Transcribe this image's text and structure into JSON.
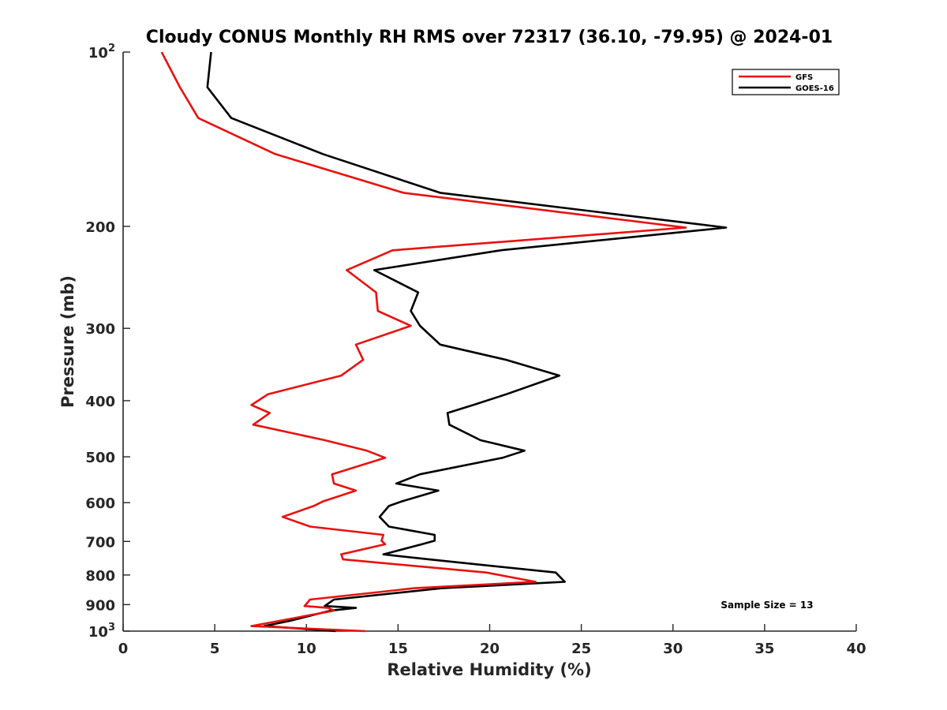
{
  "chart_data": {
    "type": "line",
    "title": "Cloudy CONUS Monthly RH RMS over 72317 (36.10, -79.95) @ 2024-01",
    "xlabel": "Relative Humidity (%)",
    "ylabel": "Pressure (mb)",
    "xlim": [
      0,
      40
    ],
    "ylim": [
      100,
      1000
    ],
    "yscale": "log",
    "y_reversed": true,
    "x_ticks": [
      0,
      5,
      10,
      15,
      20,
      25,
      30,
      35,
      40
    ],
    "x_tick_labels": [
      "0",
      "5",
      "10",
      "15",
      "20",
      "25",
      "30",
      "35",
      "40"
    ],
    "y_ticks": [
      100,
      200,
      300,
      400,
      500,
      600,
      700,
      800,
      900,
      1000
    ],
    "y_tick_labels": [
      {
        "base": "10",
        "exp": "2"
      },
      {
        "base": "200",
        "exp": ""
      },
      {
        "base": "300",
        "exp": ""
      },
      {
        "base": "400",
        "exp": ""
      },
      {
        "base": "500",
        "exp": ""
      },
      {
        "base": "600",
        "exp": ""
      },
      {
        "base": "700",
        "exp": ""
      },
      {
        "base": "800",
        "exp": ""
      },
      {
        "base": "900",
        "exp": ""
      },
      {
        "base": "10",
        "exp": "3"
      }
    ],
    "grid": false,
    "legend_position": "top-right",
    "annotation": "Sample Size = 13",
    "series": [
      {
        "name": "GFS",
        "color": "#e8120f",
        "points": [
          [
            2.1,
            100
          ],
          [
            3.1,
            115
          ],
          [
            4.1,
            130
          ],
          [
            8.3,
            150
          ],
          [
            15.3,
            175
          ],
          [
            30.7,
            201
          ],
          [
            14.7,
            220
          ],
          [
            12.2,
            238
          ],
          [
            13.8,
            260
          ],
          [
            13.9,
            280
          ],
          [
            15.7,
            297
          ],
          [
            12.7,
            320
          ],
          [
            13.1,
            340
          ],
          [
            11.9,
            362
          ],
          [
            7.9,
            390
          ],
          [
            7.0,
            407
          ],
          [
            8.0,
            420
          ],
          [
            7.1,
            440
          ],
          [
            11.0,
            468
          ],
          [
            13.3,
            488
          ],
          [
            14.3,
            502
          ],
          [
            11.4,
            536
          ],
          [
            11.5,
            556
          ],
          [
            12.7,
            572
          ],
          [
            10.9,
            597
          ],
          [
            10.4,
            608
          ],
          [
            8.7,
            635
          ],
          [
            10.2,
            660
          ],
          [
            14.2,
            682
          ],
          [
            14.1,
            698
          ],
          [
            14.3,
            708
          ],
          [
            11.9,
            737
          ],
          [
            12.0,
            752
          ],
          [
            19.8,
            792
          ],
          [
            22.5,
            822
          ],
          [
            15.9,
            843
          ],
          [
            10.2,
            882
          ],
          [
            9.9,
            905
          ],
          [
            11.2,
            912
          ],
          [
            11.5,
            922
          ],
          [
            7.0,
            980
          ],
          [
            13.2,
            1000
          ]
        ]
      },
      {
        "name": "GOES-16",
        "color": "#000000",
        "points": [
          [
            4.8,
            100
          ],
          [
            4.6,
            115
          ],
          [
            5.9,
            130
          ],
          [
            10.9,
            150
          ],
          [
            17.3,
            175
          ],
          [
            32.9,
            201
          ],
          [
            20.6,
            220
          ],
          [
            13.7,
            238
          ],
          [
            16.1,
            260
          ],
          [
            15.7,
            280
          ],
          [
            16.2,
            297
          ],
          [
            17.3,
            320
          ],
          [
            20.9,
            340
          ],
          [
            23.8,
            362
          ],
          [
            20.9,
            390
          ],
          [
            19.1,
            407
          ],
          [
            17.7,
            420
          ],
          [
            17.8,
            440
          ],
          [
            19.5,
            468
          ],
          [
            21.9,
            488
          ],
          [
            20.7,
            502
          ],
          [
            16.2,
            536
          ],
          [
            14.9,
            556
          ],
          [
            17.2,
            572
          ],
          [
            15.2,
            597
          ],
          [
            14.5,
            608
          ],
          [
            14.0,
            635
          ],
          [
            14.5,
            660
          ],
          [
            17.0,
            682
          ],
          [
            17.0,
            698
          ],
          [
            16.3,
            708
          ],
          [
            14.2,
            737
          ],
          [
            16.7,
            752
          ],
          [
            23.6,
            792
          ],
          [
            24.1,
            822
          ],
          [
            17.4,
            843
          ],
          [
            11.5,
            882
          ],
          [
            11.0,
            905
          ],
          [
            12.7,
            912
          ],
          [
            11.3,
            922
          ],
          [
            9.1,
            960
          ],
          [
            7.7,
            980
          ],
          [
            11.6,
            1000
          ]
        ]
      }
    ]
  }
}
